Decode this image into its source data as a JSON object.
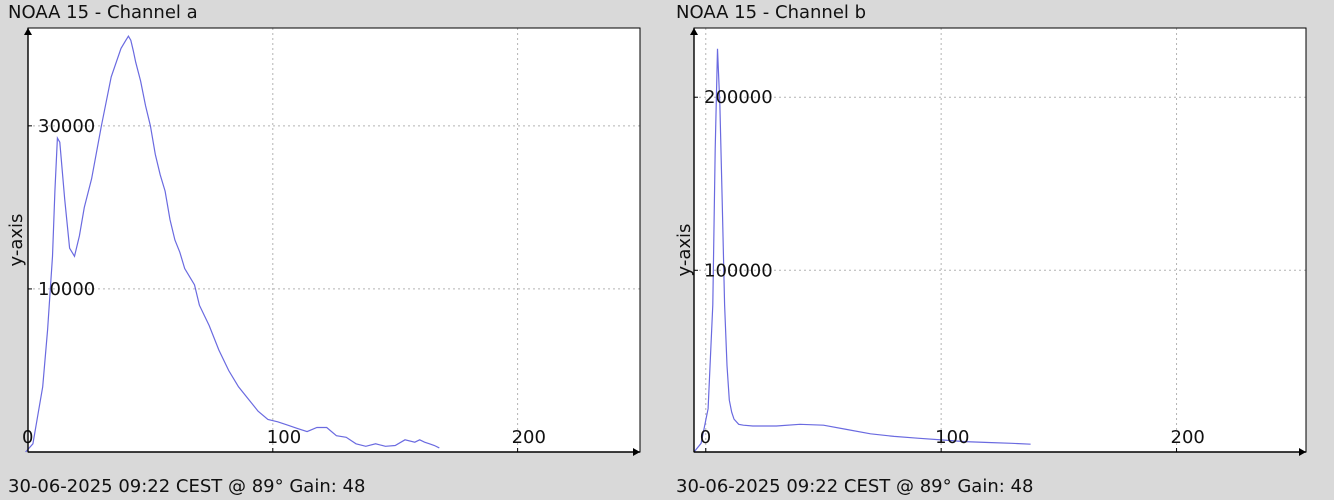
{
  "chart_data": [
    {
      "type": "line",
      "title": "NOAA 15 - Channel a",
      "ylabel": "y-axis",
      "xlabel": "",
      "footer": "30-06-2025 09:22 CEST @ 89° Gain: 48",
      "xlim": [
        0,
        250
      ],
      "ylim": [
        -10000,
        42000
      ],
      "grid": true,
      "line_color": "#6a6ae0",
      "x_ticks": [
        {
          "value": 0,
          "label": "0"
        },
        {
          "value": 100,
          "label": "100"
        },
        {
          "value": 200,
          "label": "200"
        }
      ],
      "y_ticks": [
        {
          "value": 10000,
          "label": "10000"
        },
        {
          "value": 30000,
          "label": "30000"
        }
      ],
      "x": [
        -1,
        2,
        4,
        6,
        8,
        10,
        11,
        12,
        13,
        15,
        17,
        19,
        21,
        23,
        26,
        30,
        34,
        38,
        40,
        41,
        42,
        43,
        44,
        46,
        48,
        50,
        52,
        54,
        56,
        58,
        60,
        62,
        64,
        66,
        68,
        70,
        74,
        78,
        82,
        86,
        90,
        94,
        98,
        102,
        106,
        110,
        114,
        118,
        122,
        126,
        130,
        134,
        138,
        142,
        146,
        150,
        154,
        158,
        160,
        162,
        164,
        166,
        168
      ],
      "y": [
        -10000,
        -9000,
        -5500,
        -2000,
        5000,
        14000,
        22000,
        28500,
        28000,
        21000,
        15000,
        14000,
        16500,
        20000,
        23500,
        30000,
        36000,
        39500,
        40500,
        41000,
        40500,
        39200,
        37800,
        35500,
        32500,
        30000,
        26500,
        24000,
        22000,
        18500,
        16000,
        14500,
        12500,
        11500,
        10500,
        8000,
        5500,
        2500,
        0,
        -2000,
        -3500,
        -5000,
        -6000,
        -6300,
        -6700,
        -7100,
        -7500,
        -7000,
        -7000,
        -8000,
        -8200,
        -9000,
        -9300,
        -9000,
        -9300,
        -9200,
        -8500,
        -8800,
        -8500,
        -8800,
        -9000,
        -9200,
        -9500
      ]
    },
    {
      "type": "line",
      "title": "NOAA 15 - Channel b",
      "ylabel": "y-axis",
      "xlabel": "",
      "footer": "30-06-2025 09:22 CEST @ 89° Gain: 48",
      "xlim": [
        -5,
        255
      ],
      "ylim": [
        -5000,
        240000
      ],
      "grid": true,
      "line_color": "#6a6ae0",
      "x_ticks": [
        {
          "value": 0,
          "label": "0"
        },
        {
          "value": 100,
          "label": "100"
        },
        {
          "value": 200,
          "label": "200"
        }
      ],
      "y_ticks": [
        {
          "value": 100000,
          "label": "100000"
        },
        {
          "value": 200000,
          "label": "200000"
        }
      ],
      "x": [
        -5,
        -2,
        1,
        3,
        4,
        5,
        6,
        7,
        8,
        9,
        10,
        11,
        12,
        14,
        16,
        20,
        30,
        40,
        50,
        60,
        70,
        80,
        90,
        100,
        110,
        120,
        130,
        138
      ],
      "y": [
        -5000,
        0,
        20000,
        80000,
        170000,
        228000,
        195000,
        140000,
        80000,
        45000,
        25000,
        18000,
        14000,
        11000,
        10500,
        10000,
        10000,
        11000,
        10500,
        8000,
        5500,
        4000,
        3000,
        2000,
        1000,
        500,
        0,
        -500
      ]
    }
  ]
}
